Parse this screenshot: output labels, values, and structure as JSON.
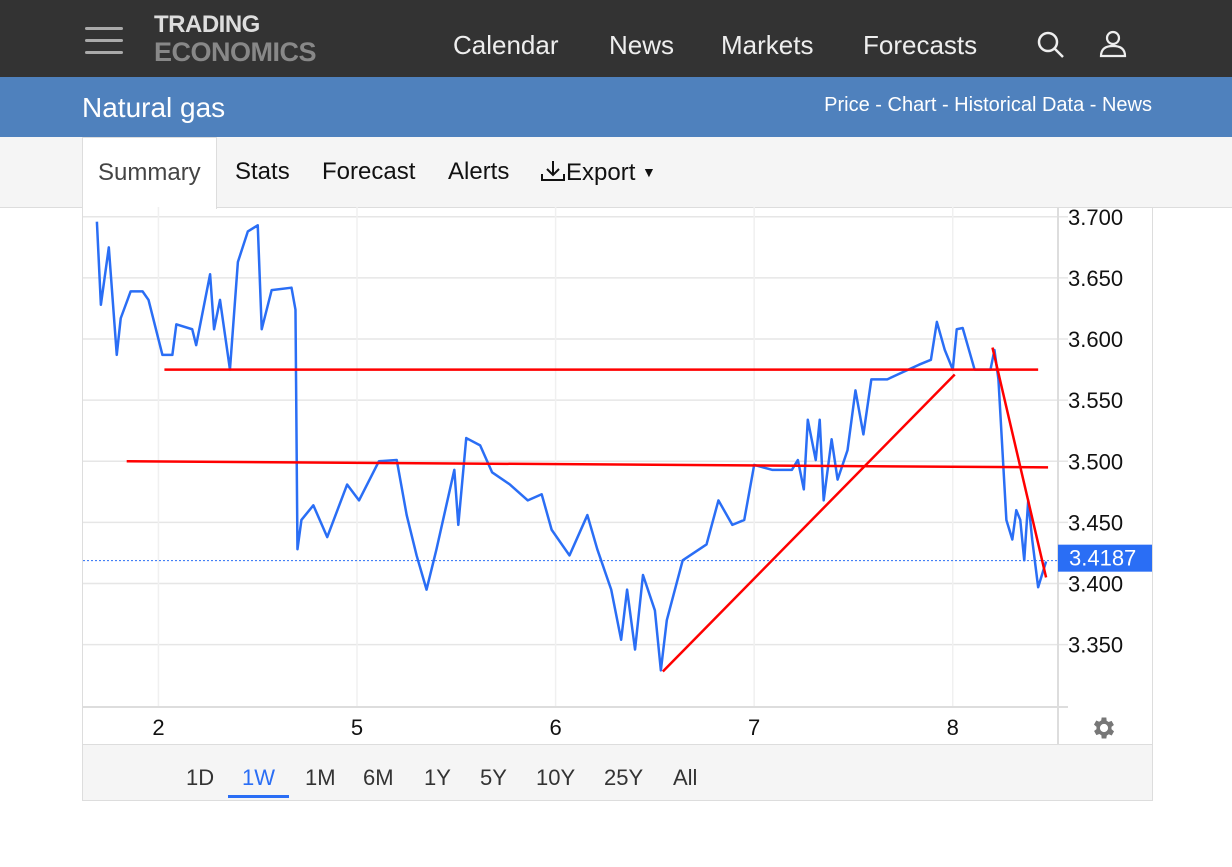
{
  "header": {
    "logo_line1": "TRADING",
    "logo_line2": "ECONOMICS",
    "nav": [
      "Calendar",
      "News",
      "Markets",
      "Forecasts"
    ]
  },
  "subheader": {
    "title": "Natural gas",
    "links": "Price - Chart - Historical Data - News"
  },
  "tabs": {
    "summary": "Summary",
    "stats": "Stats",
    "forecast": "Forecast",
    "alerts": "Alerts",
    "export": "Export"
  },
  "ranges": [
    "1D",
    "1W",
    "1M",
    "6M",
    "1Y",
    "5Y",
    "10Y",
    "25Y",
    "All"
  ],
  "active_range": "1W",
  "colors": {
    "line": "#2a6ef5",
    "trend": "#ff0000",
    "accent": "#4f81bd"
  },
  "chart_data": {
    "type": "line",
    "title": "Natural gas",
    "x_tick_labels": [
      "2",
      "5",
      "6",
      "7",
      "8"
    ],
    "x_ticks": [
      0,
      1,
      2,
      3,
      4
    ],
    "xlim": [
      -0.38,
      4.53
    ],
    "ylim": [
      3.299,
      3.708
    ],
    "y_ticks": [
      3.35,
      3.4,
      3.45,
      3.5,
      3.55,
      3.6,
      3.65,
      3.7
    ],
    "y_tick_labels": [
      "3.350",
      "3.400",
      "3.450",
      "3.500",
      "3.550",
      "3.600",
      "3.650",
      "3.700"
    ],
    "last_price": 3.4187,
    "last_price_label": "3.4187",
    "grid": true,
    "series": [
      {
        "name": "Natural gas",
        "x": [
          -0.31,
          -0.29,
          -0.25,
          -0.21,
          -0.19,
          -0.14,
          -0.08,
          -0.05,
          0.02,
          0.07,
          0.09,
          0.17,
          0.19,
          0.26,
          0.28,
          0.31,
          0.36,
          0.4,
          0.45,
          0.5,
          0.52,
          0.57,
          0.67,
          0.69,
          0.7,
          0.72,
          0.78,
          0.85,
          0.95,
          1.01,
          1.11,
          1.2,
          1.25,
          1.3,
          1.35,
          1.4,
          1.49,
          1.51,
          1.55,
          1.62,
          1.68,
          1.77,
          1.86,
          1.93,
          1.98,
          2.07,
          2.16,
          2.21,
          2.28,
          2.33,
          2.36,
          2.4,
          2.44,
          2.5,
          2.53,
          2.56,
          2.64,
          2.76,
          2.82,
          2.89,
          2.95,
          3.0,
          3.09,
          3.19,
          3.22,
          3.25,
          3.27,
          3.31,
          3.33,
          3.35,
          3.39,
          3.42,
          3.47,
          3.51,
          3.55,
          3.59,
          3.67,
          3.75,
          3.83,
          3.89,
          3.92,
          3.96,
          4.0,
          4.02,
          4.05,
          4.11,
          4.19,
          4.21,
          4.23,
          4.27,
          4.3,
          4.32,
          4.34,
          4.36,
          4.38,
          4.4,
          4.43,
          4.47
        ],
        "y": [
          3.696,
          3.628,
          3.675,
          3.587,
          3.617,
          3.639,
          3.639,
          3.632,
          3.587,
          3.587,
          3.612,
          3.608,
          3.595,
          3.653,
          3.608,
          3.632,
          3.575,
          3.663,
          3.688,
          3.693,
          3.608,
          3.64,
          3.642,
          3.624,
          3.428,
          3.452,
          3.464,
          3.438,
          3.481,
          3.468,
          3.5,
          3.501,
          3.456,
          3.423,
          3.395,
          3.428,
          3.493,
          3.448,
          3.519,
          3.513,
          3.491,
          3.481,
          3.468,
          3.473,
          3.444,
          3.423,
          3.456,
          3.428,
          3.395,
          3.354,
          3.395,
          3.346,
          3.407,
          3.378,
          3.329,
          3.37,
          3.419,
          3.432,
          3.468,
          3.448,
          3.452,
          3.497,
          3.493,
          3.493,
          3.501,
          3.477,
          3.534,
          3.501,
          3.534,
          3.468,
          3.518,
          3.485,
          3.509,
          3.558,
          3.522,
          3.567,
          3.567,
          3.573,
          3.579,
          3.583,
          3.614,
          3.591,
          3.575,
          3.608,
          3.609,
          3.575,
          3.575,
          3.591,
          3.567,
          3.452,
          3.436,
          3.46,
          3.452,
          3.419,
          3.468,
          3.436,
          3.397,
          3.418
        ]
      }
    ],
    "trendlines": [
      {
        "x": [
          0.03,
          4.43
        ],
        "y": [
          3.575,
          3.575
        ]
      },
      {
        "x": [
          -0.16,
          4.48
        ],
        "y": [
          3.5,
          3.495
        ]
      },
      {
        "x": [
          2.54,
          4.01
        ],
        "y": [
          3.328,
          3.571
        ]
      },
      {
        "x": [
          4.2,
          4.47
        ],
        "y": [
          3.593,
          3.405
        ]
      }
    ]
  }
}
